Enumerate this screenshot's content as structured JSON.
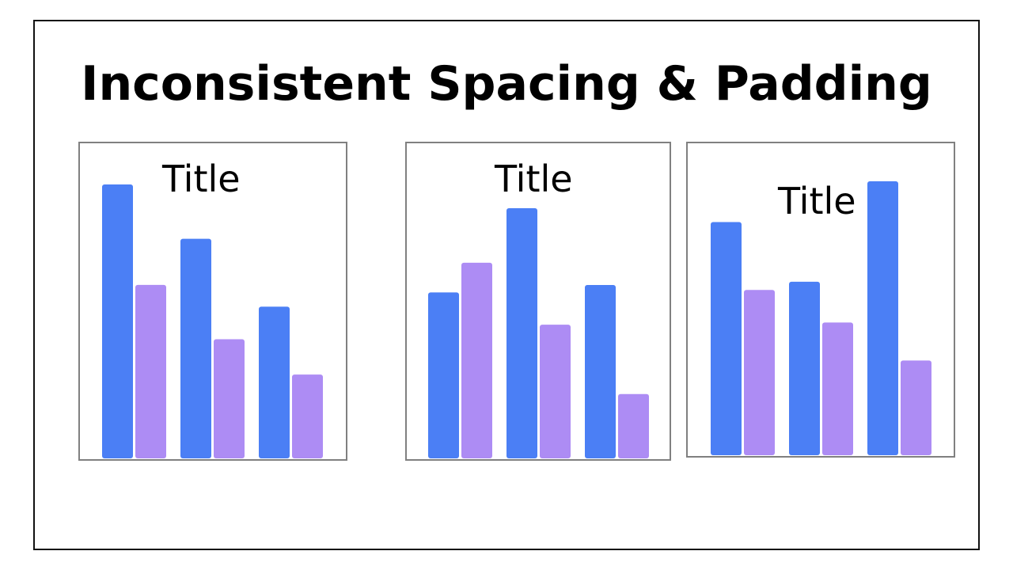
{
  "heading": "Inconsistent Spacing & Padding",
  "colors": {
    "series_a": "#4B7FF5",
    "series_b": "#AD8CF4",
    "panel_border": "#808080",
    "frame_border": "#111111"
  },
  "chart_data": [
    {
      "type": "bar",
      "title": "Title",
      "categories": [
        "",
        "",
        ""
      ],
      "series": [
        {
          "values": [
            100,
            80,
            55
          ]
        },
        {
          "values": [
            63,
            43,
            30
          ]
        }
      ],
      "ylim": [
        0,
        100
      ],
      "axes_visible": false,
      "grid": false
    },
    {
      "type": "bar",
      "title": "Title",
      "categories": [
        "",
        "",
        ""
      ],
      "series": [
        {
          "values": [
            66,
            100,
            69
          ]
        },
        {
          "values": [
            78,
            53,
            25
          ]
        }
      ],
      "ylim": [
        0,
        100
      ],
      "axes_visible": false,
      "grid": false
    },
    {
      "type": "bar",
      "title": "Title",
      "categories": [
        "",
        "",
        ""
      ],
      "series": [
        {
          "values": [
            85,
            63,
            100
          ]
        },
        {
          "values": [
            60,
            48,
            34
          ]
        }
      ],
      "ylim": [
        0,
        100
      ],
      "axes_visible": false,
      "grid": false
    }
  ]
}
